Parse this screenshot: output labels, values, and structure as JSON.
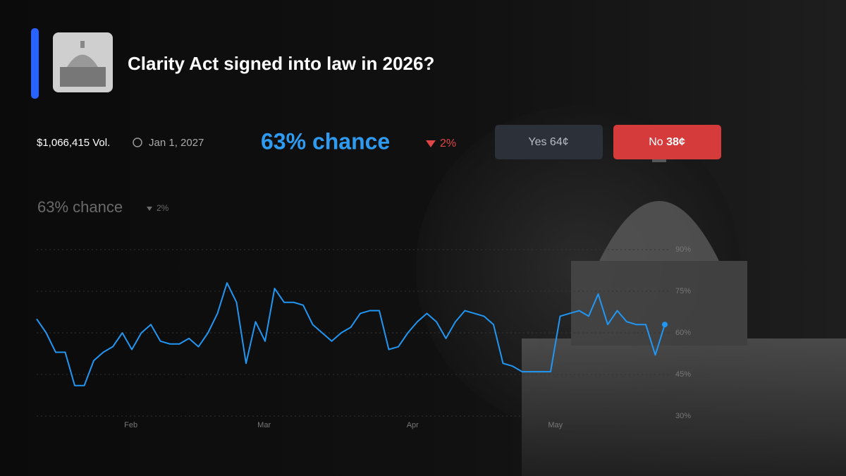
{
  "header": {
    "title": "Clarity Act signed into law in 2026?",
    "volume": "$1,066,415 Vol.",
    "end_date": "Jan 1, 2027",
    "chance": "63% chance",
    "change": "2%"
  },
  "buttons": {
    "yes_label": "Yes",
    "yes_price": "64¢",
    "no_label": "No",
    "no_price": "38¢"
  },
  "chart_data": {
    "type": "line",
    "title": "63% chance",
    "change": "2%",
    "color": "#2196f3",
    "values": [
      65,
      60,
      53,
      53,
      41,
      41,
      50,
      53,
      55,
      60,
      54,
      60,
      63,
      57,
      56,
      56,
      58,
      55,
      60,
      67,
      78,
      71,
      49,
      64,
      57,
      76,
      71,
      71,
      70,
      63,
      60,
      57,
      60,
      62,
      67,
      68,
      68,
      54,
      55,
      60,
      64,
      67,
      64,
      58,
      64,
      68,
      67,
      66,
      63,
      49,
      48,
      46,
      46,
      46,
      46,
      66,
      67,
      68,
      66,
      74,
      63,
      68,
      64,
      63,
      63,
      52,
      63
    ],
    "xlim": [
      0,
      66
    ],
    "xticks": [
      {
        "value": 9.9,
        "label": "Feb"
      },
      {
        "value": 23.9,
        "label": "Mar"
      },
      {
        "value": 39.5,
        "label": "Apr"
      },
      {
        "value": 54.5,
        "label": "May"
      }
    ],
    "ylim": [
      30,
      90
    ],
    "yticks": [
      {
        "value": 30,
        "label": "30%"
      },
      {
        "value": 45,
        "label": "45%"
      },
      {
        "value": 60,
        "label": "60%"
      },
      {
        "value": 75,
        "label": "75%"
      },
      {
        "value": 90,
        "label": "90%"
      }
    ],
    "grid": true
  }
}
